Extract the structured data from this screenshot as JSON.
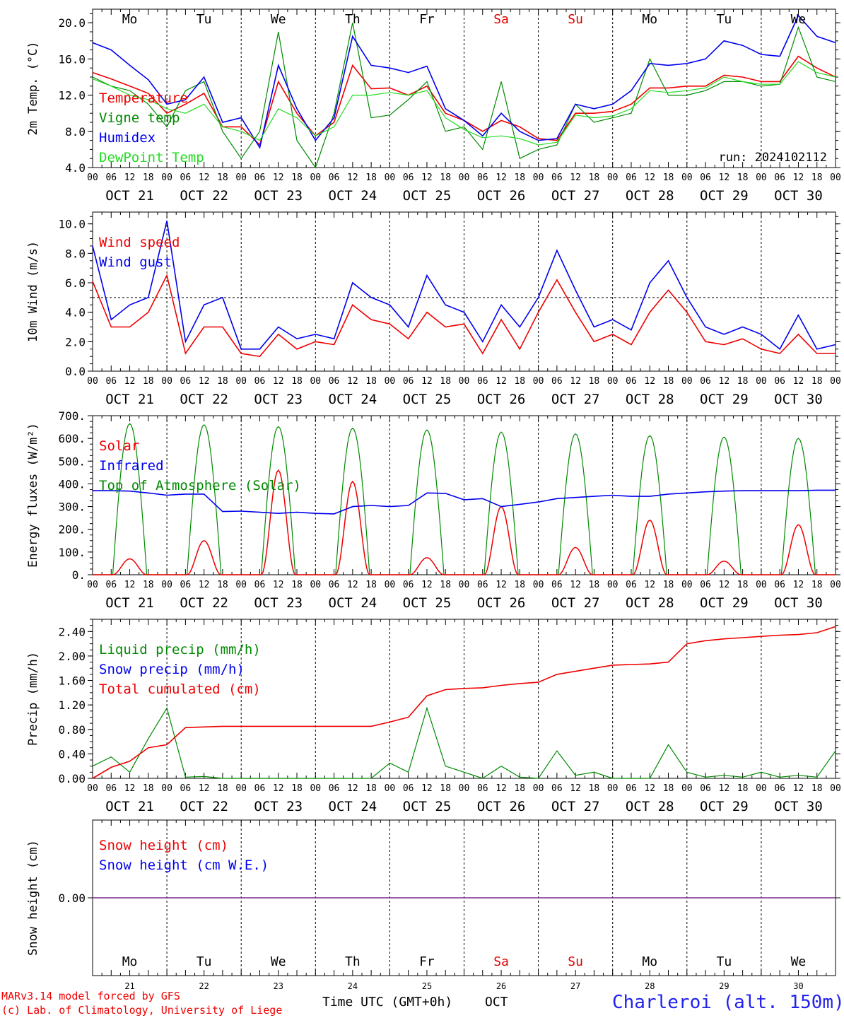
{
  "days": [
    "Mo",
    "Tu",
    "We",
    "Th",
    "Fr",
    "Sa",
    "Su",
    "Mo",
    "Tu",
    "We"
  ],
  "day_colors": [
    "#000000",
    "#000000",
    "#000000",
    "#000000",
    "#000000",
    "#e00000",
    "#e00000",
    "#000000",
    "#000000",
    "#000000"
  ],
  "date_labels": [
    "OCT 21",
    "OCT 22",
    "OCT 23",
    "OCT 24",
    "OCT 25",
    "OCT 26",
    "OCT 27",
    "OCT 28",
    "OCT 29",
    "OCT 30"
  ],
  "day_numbers": [
    "21",
    "22",
    "23",
    "24",
    "25",
    "26",
    "27",
    "28",
    "29",
    "30"
  ],
  "hour_ticks": [
    "00",
    "06",
    "12",
    "18"
  ],
  "end_tick": "00",
  "colors": {
    "red": "#ee0000",
    "green": "#008a00",
    "blue": "#0000ee",
    "lightgreen": "#22dd22",
    "purple": "#7a2a90"
  },
  "footer": {
    "credit1": "MARv3.14 model forced by GFS",
    "credit2": "(c) Lab. of Climatology, University of Liege",
    "time_label": "Time UTC (GMT+0h)",
    "month_label": "OCT",
    "station": "Charleroi (alt. 150m)"
  },
  "chart_data": [
    {
      "type": "line",
      "ylabel": "2m Temp. (°C)",
      "ylim": [
        4,
        21.5
      ],
      "yticks": [
        4,
        8,
        12,
        16,
        20
      ],
      "ytick_labels": [
        "4.0",
        "8.0",
        "12.0",
        "16.0",
        "20.0"
      ],
      "annotation": "run: 2024102112",
      "legend": [
        "Temperature",
        "Vigne temp",
        "Humidex",
        "DewPoint Temp"
      ],
      "x_hours": [
        0,
        6,
        12,
        18,
        24,
        30,
        36,
        42,
        48,
        54,
        60,
        66,
        72,
        78,
        84,
        90,
        96,
        102,
        108,
        114,
        120,
        126,
        132,
        138,
        144,
        150,
        156,
        162,
        168,
        174,
        180,
        186,
        192,
        198,
        204,
        210,
        216,
        222,
        228,
        234,
        240
      ],
      "series": [
        {
          "name": "Temperature",
          "color": "red",
          "values": [
            14.5,
            13.8,
            13.0,
            12.2,
            10.0,
            11.0,
            12.2,
            8.5,
            8.5,
            6.5,
            13.5,
            10.0,
            7.5,
            9.0,
            15.3,
            12.7,
            12.8,
            12.0,
            13.0,
            10.0,
            9.2,
            8.0,
            9.2,
            8.5,
            7.2,
            7.0,
            10.0,
            10.0,
            10.2,
            11.0,
            12.8,
            12.8,
            13.0,
            13.0,
            14.2,
            14.0,
            13.5,
            13.5,
            16.3,
            15.0,
            14.0
          ]
        },
        {
          "name": "Vigne temp",
          "color": "green",
          "values": [
            14.0,
            13.0,
            12.5,
            11.0,
            8.5,
            12.5,
            13.5,
            8.0,
            5.0,
            8.0,
            19.0,
            7.0,
            4.0,
            10.0,
            20.0,
            9.5,
            9.8,
            11.5,
            13.5,
            8.0,
            8.5,
            6.0,
            13.5,
            5.0,
            6.0,
            6.5,
            11.0,
            9.0,
            9.5,
            10.0,
            16.0,
            12.0,
            12.0,
            12.5,
            13.5,
            13.5,
            13.0,
            13.2,
            19.5,
            14.0,
            13.5
          ]
        },
        {
          "name": "Humidex",
          "color": "blue",
          "values": [
            17.8,
            17.0,
            15.3,
            13.7,
            11.0,
            11.5,
            14.0,
            9.0,
            9.5,
            6.2,
            15.3,
            10.5,
            7.0,
            9.5,
            18.5,
            15.3,
            15.0,
            14.5,
            15.2,
            10.5,
            9.2,
            7.5,
            10.0,
            8.0,
            7.0,
            7.2,
            11.0,
            10.5,
            11.0,
            12.5,
            15.5,
            15.3,
            15.5,
            16.0,
            18.0,
            17.5,
            16.5,
            16.3,
            20.8,
            18.5,
            17.8
          ]
        },
        {
          "name": "DewPoint Temp",
          "color": "lightgreen",
          "values": [
            13.8,
            13.0,
            12.0,
            11.5,
            10.5,
            10.0,
            11.0,
            8.5,
            8.0,
            7.0,
            10.5,
            9.5,
            7.5,
            8.5,
            12.0,
            12.0,
            12.3,
            12.0,
            12.5,
            9.5,
            8.2,
            7.3,
            7.5,
            7.2,
            6.5,
            6.8,
            9.8,
            9.5,
            9.7,
            10.5,
            12.5,
            12.3,
            12.5,
            12.8,
            14.0,
            13.5,
            13.2,
            13.2,
            15.7,
            14.5,
            14.0
          ]
        }
      ]
    },
    {
      "type": "line",
      "ylabel": "10m Wind (m/s)",
      "ylim": [
        0,
        10.8
      ],
      "yticks": [
        0,
        2,
        4,
        6,
        8,
        10
      ],
      "ytick_labels": [
        "0.0",
        "2.0",
        "4.0",
        "6.0",
        "8.0",
        "10.0"
      ],
      "reference_line": 5.0,
      "legend": [
        "Wind speed",
        "Wind gust"
      ],
      "x_hours": [
        0,
        6,
        12,
        18,
        24,
        30,
        36,
        42,
        48,
        54,
        60,
        66,
        72,
        78,
        84,
        90,
        96,
        102,
        108,
        114,
        120,
        126,
        132,
        138,
        144,
        150,
        156,
        162,
        168,
        174,
        180,
        186,
        192,
        198,
        204,
        210,
        216,
        222,
        228,
        234,
        240
      ],
      "series": [
        {
          "name": "Wind speed",
          "color": "red",
          "values": [
            6.1,
            3.0,
            3.0,
            4.0,
            6.5,
            1.2,
            3.0,
            3.0,
            1.2,
            1.0,
            2.5,
            1.5,
            2.0,
            1.8,
            4.5,
            3.5,
            3.2,
            2.2,
            4.0,
            3.0,
            3.2,
            1.2,
            3.5,
            1.5,
            4.0,
            6.2,
            4.0,
            2.0,
            2.5,
            1.8,
            4.0,
            5.5,
            4.0,
            2.0,
            1.8,
            2.2,
            1.5,
            1.2,
            2.5,
            1.2,
            1.2
          ]
        },
        {
          "name": "Wind gust",
          "color": "blue",
          "values": [
            8.5,
            3.5,
            4.5,
            5.0,
            10.2,
            2.0,
            4.5,
            5.0,
            1.5,
            1.5,
            3.0,
            2.2,
            2.5,
            2.2,
            6.0,
            5.0,
            4.5,
            3.0,
            6.5,
            4.5,
            4.0,
            2.0,
            4.5,
            3.0,
            5.0,
            8.2,
            5.5,
            3.0,
            3.5,
            2.8,
            6.0,
            7.5,
            5.0,
            3.0,
            2.5,
            3.0,
            2.5,
            1.5,
            3.8,
            1.5,
            1.8
          ]
        }
      ]
    },
    {
      "type": "line",
      "ylabel": "Energy fluxes (W/m²)",
      "ylim": [
        0,
        700
      ],
      "yticks": [
        0,
        100,
        200,
        300,
        400,
        500,
        600,
        700
      ],
      "ytick_labels": [
        "0.",
        "100.",
        "200.",
        "300.",
        "400.",
        "500.",
        "600.",
        "700."
      ],
      "legend": [
        "Solar",
        "Infrared",
        "Top of Atmosphere (Solar)"
      ],
      "toa_peaks": [
        665,
        660,
        652,
        645,
        637,
        628,
        620,
        612,
        606,
        600
      ],
      "solar_peaks": [
        70,
        150,
        460,
        410,
        75,
        300,
        120,
        240,
        60,
        220
      ],
      "x_hours": [
        0,
        6,
        12,
        18,
        24,
        30,
        36,
        42,
        48,
        54,
        60,
        66,
        72,
        78,
        84,
        90,
        96,
        102,
        108,
        114,
        120,
        126,
        132,
        138,
        144,
        150,
        156,
        162,
        168,
        174,
        180,
        186,
        192,
        198,
        204,
        210,
        216,
        222,
        228,
        234,
        240
      ],
      "series": [
        {
          "name": "Infrared",
          "color": "blue",
          "values": [
            370,
            370,
            368,
            360,
            350,
            355,
            355,
            278,
            280,
            275,
            270,
            275,
            270,
            268,
            300,
            305,
            300,
            305,
            360,
            358,
            330,
            335,
            300,
            310,
            320,
            335,
            340,
            345,
            350,
            345,
            345,
            355,
            360,
            365,
            368,
            370,
            370,
            370,
            370,
            372,
            372
          ]
        }
      ]
    },
    {
      "type": "line",
      "ylabel": "Precip (mm/h)",
      "ylim": [
        0,
        2.6
      ],
      "yticks": [
        0,
        0.4,
        0.8,
        1.2,
        1.6,
        2.0,
        2.4
      ],
      "ytick_labels": [
        "0.00",
        "0.40",
        "0.80",
        "1.20",
        "1.60",
        "2.00",
        "2.40"
      ],
      "legend": [
        "Liquid precip (mm/h)",
        "Snow precip (mm/h)",
        "Total cumulated (cm)"
      ],
      "x_hours": [
        0,
        6,
        12,
        18,
        24,
        30,
        36,
        42,
        48,
        54,
        60,
        66,
        72,
        78,
        84,
        90,
        96,
        102,
        108,
        114,
        120,
        126,
        132,
        138,
        144,
        150,
        156,
        162,
        168,
        174,
        180,
        186,
        192,
        198,
        204,
        210,
        216,
        222,
        228,
        234,
        240
      ],
      "series": [
        {
          "name": "Liquid precip (mm/h)",
          "color": "green",
          "values": [
            0.2,
            0.35,
            0.1,
            0.65,
            1.15,
            0.02,
            0.03,
            0.0,
            0.0,
            0.0,
            0.0,
            0.0,
            0.0,
            0.0,
            0.0,
            0.0,
            0.25,
            0.1,
            1.15,
            0.2,
            0.1,
            0.0,
            0.2,
            0.02,
            0.0,
            0.45,
            0.05,
            0.1,
            0.0,
            0.0,
            0.0,
            0.55,
            0.1,
            0.02,
            0.05,
            0.02,
            0.1,
            0.02,
            0.05,
            0.02,
            0.45
          ]
        },
        {
          "name": "Total cumulated (cm)",
          "color": "red",
          "values": [
            0.0,
            0.18,
            0.28,
            0.5,
            0.55,
            0.83,
            0.84,
            0.85,
            0.85,
            0.85,
            0.85,
            0.85,
            0.85,
            0.85,
            0.85,
            0.85,
            0.92,
            1.0,
            1.35,
            1.45,
            1.47,
            1.48,
            1.52,
            1.55,
            1.57,
            1.7,
            1.75,
            1.8,
            1.85,
            1.86,
            1.87,
            1.9,
            2.2,
            2.25,
            2.28,
            2.3,
            2.32,
            2.34,
            2.35,
            2.38,
            2.48
          ]
        }
      ]
    },
    {
      "type": "line",
      "ylabel": "Snow height (cm)",
      "ylim": [
        -1,
        1
      ],
      "yticks": [
        0
      ],
      "ytick_labels": [
        "0.00"
      ],
      "legend": [
        "Snow height (cm)",
        "Snow height (cm W.E.)"
      ],
      "x_hours": [
        0,
        240
      ],
      "series": [
        {
          "name": "Snow height (cm)",
          "color": "purple",
          "values": [
            0,
            0
          ]
        }
      ]
    }
  ]
}
